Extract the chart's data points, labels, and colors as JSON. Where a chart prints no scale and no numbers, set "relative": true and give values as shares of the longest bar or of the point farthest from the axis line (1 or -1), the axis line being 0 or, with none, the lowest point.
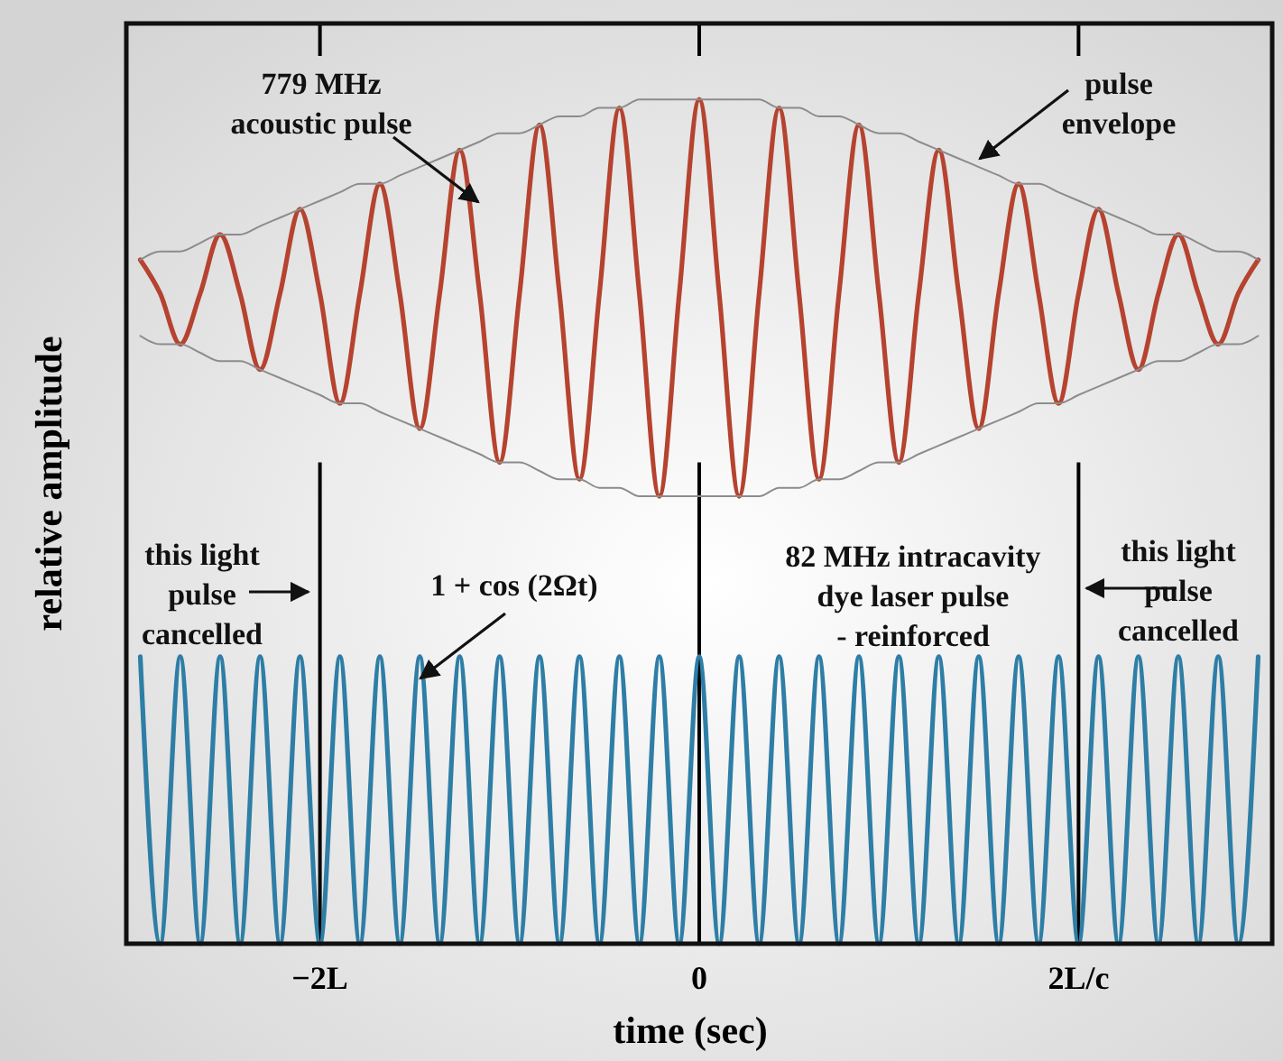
{
  "chart_data": {
    "type": "line",
    "relative": true,
    "xlabel": "time (sec)",
    "ylabel": "relative amplitude",
    "marker": "none",
    "line_style": "solid",
    "categories": [
      null,
      null,
      null,
      null,
      null,
      null,
      null,
      null,
      null,
      "−2L",
      null,
      null,
      null,
      null,
      null,
      null,
      null,
      null,
      null,
      null,
      null,
      null,
      null,
      null,
      null,
      null,
      null,
      null,
      "0",
      null,
      null,
      null,
      null,
      null,
      null,
      null,
      null,
      null,
      null,
      null,
      null,
      null,
      null,
      null,
      null,
      null,
      null,
      "2L/c",
      null,
      null,
      null,
      null,
      null,
      null,
      null,
      null,
      null
    ],
    "series": [
      {
        "color": "#b5432f",
        "values": [
          0.81,
          0.77,
          0.71,
          0.77,
          0.84,
          0.77,
          0.68,
          0.77,
          0.87,
          0.77,
          0.64,
          0.77,
          0.9,
          0.77,
          0.61,
          0.77,
          0.94,
          0.77,
          0.57,
          0.77,
          0.97,
          0.77,
          0.55,
          0.77,
          0.99,
          0.77,
          0.53,
          0.77,
          1.0,
          0.77,
          0.53,
          0.77,
          0.99,
          0.77,
          0.55,
          0.77,
          0.97,
          0.77,
          0.57,
          0.77,
          0.94,
          0.77,
          0.61,
          0.77,
          0.9,
          0.77,
          0.64,
          0.77,
          0.87,
          0.77,
          0.68,
          0.77,
          0.84,
          0.77,
          0.71,
          0.77,
          0.81
        ]
      },
      {
        "color": "#8c8c8c",
        "values": [
          0.81,
          0.82,
          0.82,
          0.83,
          0.84,
          0.84,
          0.85,
          0.86,
          0.87,
          0.88,
          0.89,
          0.9,
          0.9,
          0.91,
          0.92,
          0.93,
          0.94,
          0.95,
          0.96,
          0.96,
          0.97,
          0.98,
          0.98,
          0.99,
          0.99,
          1.0,
          1.0,
          1.0,
          1.0,
          1.0,
          1.0,
          1.0,
          0.99,
          0.99,
          0.98,
          0.98,
          0.97,
          0.96,
          0.96,
          0.95,
          0.94,
          0.93,
          0.92,
          0.91,
          0.9,
          0.9,
          0.89,
          0.88,
          0.87,
          0.86,
          0.85,
          0.84,
          0.84,
          0.83,
          0.82,
          0.82,
          0.81
        ]
      },
      {
        "color": "#8c8c8c",
        "values": [
          0.72,
          0.71,
          0.71,
          0.7,
          0.69,
          0.69,
          0.68,
          0.67,
          0.66,
          0.65,
          0.64,
          0.64,
          0.63,
          0.62,
          0.61,
          0.6,
          0.59,
          0.58,
          0.57,
          0.57,
          0.56,
          0.55,
          0.55,
          0.54,
          0.54,
          0.53,
          0.53,
          0.53,
          0.53,
          0.53,
          0.53,
          0.53,
          0.54,
          0.54,
          0.55,
          0.55,
          0.56,
          0.57,
          0.57,
          0.58,
          0.59,
          0.6,
          0.61,
          0.62,
          0.63,
          0.64,
          0.64,
          0.65,
          0.66,
          0.67,
          0.68,
          0.69,
          0.69,
          0.7,
          0.71,
          0.71,
          0.72
        ]
      },
      {
        "color": "#2e7ea6",
        "values": [
          0.34,
          0,
          0.34,
          0,
          0.34,
          0,
          0.34,
          0,
          0.34,
          0,
          0.34,
          0,
          0.34,
          0,
          0.34,
          0,
          0.34,
          0,
          0.34,
          0,
          0.34,
          0,
          0.34,
          0,
          0.34,
          0,
          0.34,
          0,
          0.34,
          0,
          0.34,
          0,
          0.34,
          0,
          0.34,
          0,
          0.34,
          0,
          0.34,
          0,
          0.34,
          0,
          0.34,
          0,
          0.34,
          0,
          0.34,
          0,
          0.34,
          0,
          0.34,
          0,
          0.34,
          0,
          0.34,
          0,
          0.34
        ]
      }
    ],
    "ref_lines": [
      {
        "axis": "x",
        "value": "−2L",
        "color": "#000000"
      },
      {
        "axis": "x",
        "value": "0",
        "color": "#000000"
      },
      {
        "axis": "x",
        "value": "2L/c",
        "color": "#000000"
      }
    ],
    "annotations": [
      "779 MHz\nacoustic pulse",
      "pulse\nenvelope",
      "this light\npulse\ncancelled",
      "1 + cos (2Ωt)",
      "82 MHz intracavity\ndye laser pulse\n- reinforced",
      "this light\npulse\ncancelled"
    ]
  }
}
